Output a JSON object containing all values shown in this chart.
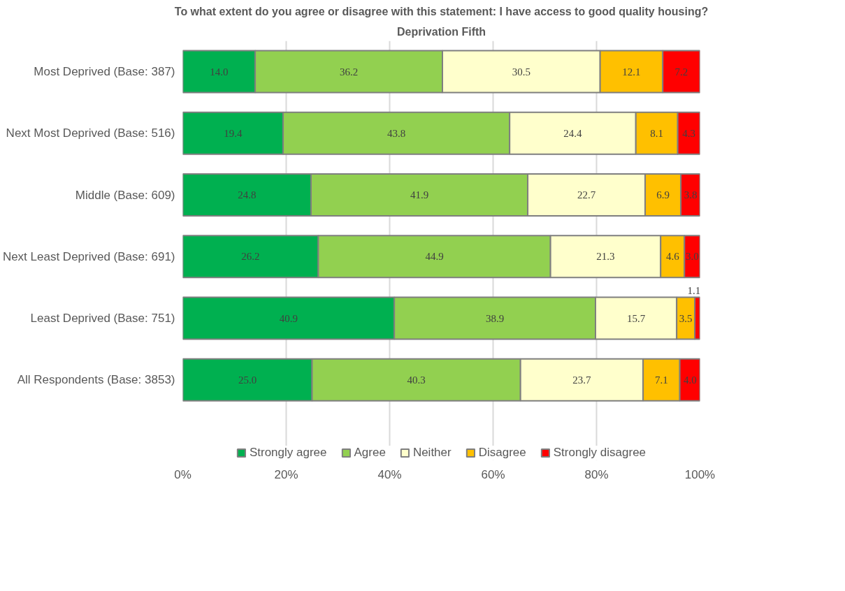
{
  "chart_data": {
    "type": "bar",
    "orientation": "horizontal",
    "stacked": true,
    "title": "To what extent do you agree or disagree with this statement: I have access to good quality housing?",
    "subtitle": "Deprivation Fifth",
    "categories": [
      "Most Deprived (Base: 387)",
      "Next Most Deprived (Base: 516)",
      "Middle (Base: 609)",
      "Next Least Deprived (Base: 691)",
      "Least Deprived (Base: 751)",
      "All Respondents (Base: 3853)"
    ],
    "series": [
      {
        "name": "Strongly agree",
        "color": "#00b050",
        "values": [
          14.0,
          19.4,
          24.8,
          26.2,
          40.9,
          25.0
        ],
        "value_labels": [
          "14.0",
          "19.4",
          "24.8",
          "26.2",
          "40.9",
          "25.0"
        ]
      },
      {
        "name": "Agree",
        "color": "#92d050",
        "values": [
          36.2,
          43.8,
          41.9,
          44.9,
          38.9,
          40.3
        ],
        "value_labels": [
          "36.2",
          "43.8",
          "41.9",
          "44.9",
          "38.9",
          "40.3"
        ]
      },
      {
        "name": "Neither",
        "color": "#ffffcc",
        "values": [
          30.5,
          24.4,
          22.7,
          21.3,
          15.7,
          23.7
        ],
        "value_labels": [
          "30.5",
          "24.4",
          "22.7",
          "21.3",
          "15.7",
          "23.7"
        ]
      },
      {
        "name": "Disagree",
        "color": "#ffc000",
        "values": [
          12.1,
          8.1,
          6.9,
          4.6,
          3.5,
          7.1
        ],
        "value_labels": [
          "12.1",
          "8.1",
          "6.9",
          "4.6",
          "3.5",
          "7.1"
        ]
      },
      {
        "name": "Strongly disagree",
        "color": "#ff0000",
        "values": [
          7.2,
          4.3,
          3.8,
          3.0,
          1.1,
          4.0
        ],
        "value_labels": [
          "7.2",
          "4.3",
          "3.8",
          "3.0",
          "1.1",
          "4.0"
        ]
      }
    ],
    "xlim": [
      0,
      100
    ],
    "xticks": [
      {
        "value": 0,
        "label": "0%"
      },
      {
        "value": 20,
        "label": "20%"
      },
      {
        "value": 40,
        "label": "40%"
      },
      {
        "value": 60,
        "label": "60%"
      },
      {
        "value": 80,
        "label": "80%"
      },
      {
        "value": 100,
        "label": "100%"
      }
    ],
    "grid": "x",
    "legend": "bottom"
  }
}
